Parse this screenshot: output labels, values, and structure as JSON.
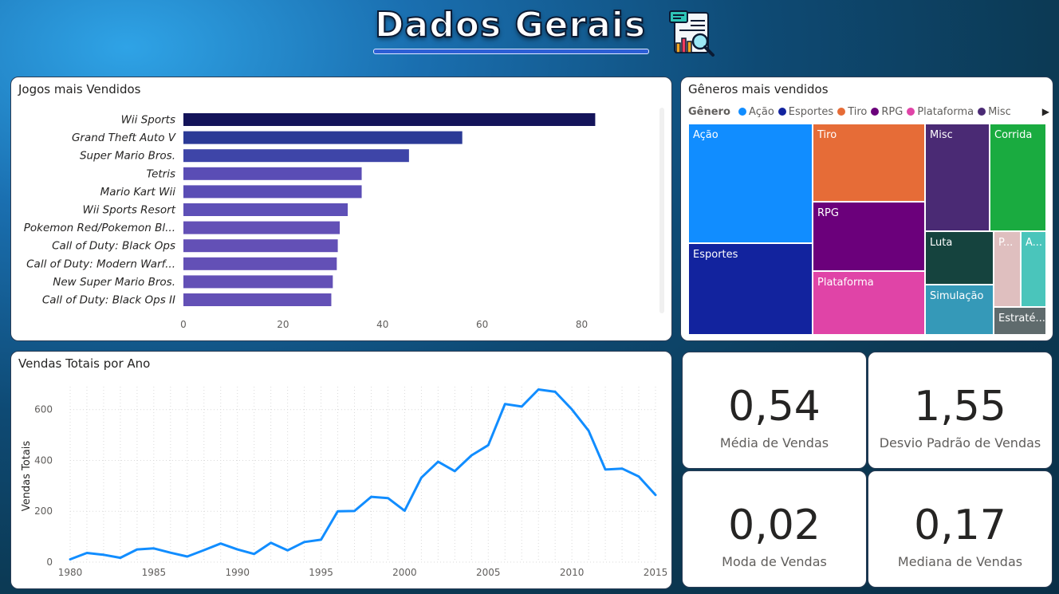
{
  "header": {
    "title": "Dados Gerais",
    "icon": "report-analysis-icon"
  },
  "panels": {
    "top_games": {
      "title": "Jogos mais Vendidos"
    },
    "genres": {
      "title": "Gêneros mais vendidos",
      "legend_title": "Gênero"
    },
    "yearly": {
      "title": "Vendas Totais por Ano"
    }
  },
  "kpis": [
    {
      "value": "0,54",
      "label": "Média de Vendas"
    },
    {
      "value": "1,55",
      "label": "Desvio Padrão de Vendas"
    },
    {
      "value": "0,02",
      "label": "Moda de Vendas"
    },
    {
      "value": "0,17",
      "label": "Mediana de Vendas"
    }
  ],
  "chart_data": [
    {
      "type": "bar",
      "orientation": "horizontal",
      "title": "Jogos mais Vendidos",
      "categories": [
        "Wii Sports",
        "Grand Theft Auto V",
        "Super Mario Bros.",
        "Tetris",
        "Mario Kart Wii",
        "Wii Sports Resort",
        "Pokemon Red/Pokemon Bl...",
        "Call of Duty: Black Ops",
        "Call of Duty: Modern Warf...",
        "New Super Mario Bros.",
        "Call of Duty: Black Ops II"
      ],
      "values": [
        82.7,
        56,
        45.3,
        35.8,
        35.8,
        33,
        31.4,
        31,
        30.8,
        30,
        29.7
      ],
      "xlim": [
        0,
        90
      ],
      "xticks": [
        0,
        20,
        40,
        60,
        80
      ],
      "colors": [
        "#14145a",
        "#2b3a96",
        "#3e45a8",
        "#5a4db5",
        "#5a4db5",
        "#5e50b7",
        "#6350b6",
        "#6350b6",
        "#6350b6",
        "#6350b6",
        "#6350b6"
      ]
    },
    {
      "type": "treemap",
      "title": "Gêneros mais vendidos",
      "legend": [
        {
          "name": "Ação",
          "color": "#118dff"
        },
        {
          "name": "Esportes",
          "color": "#12239e"
        },
        {
          "name": "Tiro",
          "color": "#e66c37"
        },
        {
          "name": "RPG",
          "color": "#6b007b"
        },
        {
          "name": "Plataforma",
          "color": "#e044a7"
        },
        {
          "name": "Misc",
          "color": "#4a2a74"
        }
      ],
      "cells": [
        {
          "name": "Ação",
          "color": "#118dff"
        },
        {
          "name": "Esportes",
          "color": "#12239e"
        },
        {
          "name": "Tiro",
          "color": "#e66c37"
        },
        {
          "name": "RPG",
          "color": "#6b007b"
        },
        {
          "name": "Plataforma",
          "color": "#e044a7"
        },
        {
          "name": "Misc",
          "color": "#4a2a74"
        },
        {
          "name": "Corrida",
          "color": "#1aab40"
        },
        {
          "name": "Luta",
          "color": "#15433e"
        },
        {
          "name": "P...",
          "color": "#dfbfbf"
        },
        {
          "name": "A...",
          "color": "#4ac5bb"
        },
        {
          "name": "Simulação",
          "color": "#3599b8"
        },
        {
          "name": "Estraté...",
          "color": "#5f6b6d"
        }
      ]
    },
    {
      "type": "line",
      "title": "Vendas Totais por Ano",
      "xlabel": "",
      "ylabel": "Vendas Totais",
      "x": [
        1980,
        1981,
        1982,
        1983,
        1984,
        1985,
        1986,
        1987,
        1988,
        1989,
        1990,
        1991,
        1992,
        1993,
        1994,
        1995,
        1996,
        1997,
        1998,
        1999,
        2000,
        2001,
        2002,
        2003,
        2004,
        2005,
        2006,
        2007,
        2008,
        2009,
        2010,
        2011,
        2012,
        2013,
        2014,
        2015
      ],
      "y": [
        11,
        36,
        29,
        17,
        50,
        54,
        37,
        22,
        47,
        73,
        50,
        32,
        76,
        46,
        79,
        88,
        200,
        201,
        257,
        252,
        202,
        332,
        395,
        358,
        420,
        460,
        622,
        612,
        679,
        670,
        601,
        517,
        364,
        368,
        337,
        264
      ],
      "xticks": [
        1980,
        1985,
        1990,
        1995,
        2000,
        2005,
        2010,
        2015
      ],
      "yticks": [
        0,
        200,
        400,
        600
      ],
      "ylim": [
        0,
        690
      ],
      "color": "#118dff"
    }
  ]
}
